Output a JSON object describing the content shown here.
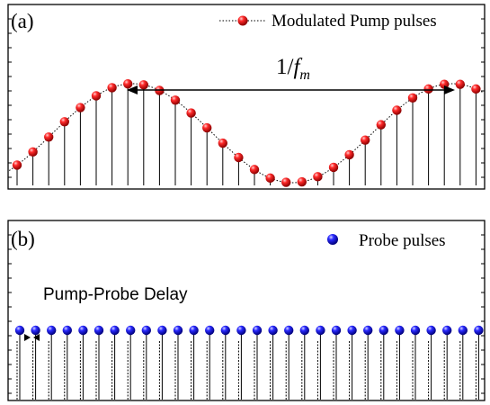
{
  "panel_a": {
    "label": "(a)",
    "legend_label": "Modulated Pump pulses",
    "period_prefix": "1/",
    "period_var": "f",
    "period_sub": "m",
    "pulse_color": "#e41010",
    "line_style": "dotted"
  },
  "panel_b": {
    "label": "(b)",
    "legend_label": "Probe pulses",
    "delay_label": "Pump-Probe Delay",
    "pulse_color": "#1515d8"
  },
  "icons": [
    "red-sphere-marker-icon",
    "blue-sphere-marker-icon",
    "double-arrow-icon",
    "delay-arrows-icon"
  ]
}
